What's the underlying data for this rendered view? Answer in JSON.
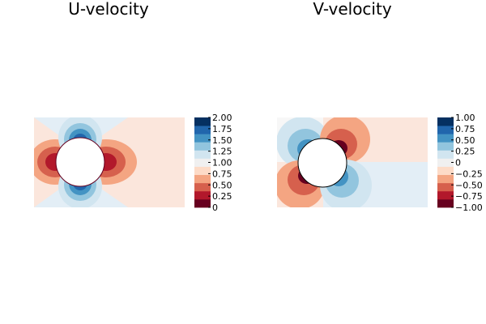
{
  "chart_data": [
    {
      "type": "heatmap",
      "title": "U-velocity",
      "colormap": "RdBu",
      "colorbar": {
        "ticks": [
          "0",
          "0.25",
          "0.50",
          "0.75",
          "1.00",
          "1.25",
          "1.50",
          "1.75",
          "2.00"
        ],
        "levels": [
          0,
          0.25,
          0.5,
          0.75,
          1.0,
          1.25,
          1.5,
          1.75,
          2.0
        ],
        "colors": [
          "#67001f",
          "#b2182b",
          "#d6604d",
          "#f4a582",
          "#fddbc7",
          "#f0f0f0",
          "#d1e5f0",
          "#92c5de",
          "#4393c3",
          "#2166ac",
          "#053061"
        ]
      },
      "obstacle": "circle",
      "legend": false,
      "grid": false
    },
    {
      "type": "heatmap",
      "title": "V-velocity",
      "colormap": "RdBu",
      "colorbar": {
        "ticks": [
          "−1.00",
          "−0.75",
          "−0.50",
          "−0.25",
          "0",
          "0.25",
          "0.50",
          "0.75",
          "1.00"
        ],
        "levels": [
          -1.0,
          -0.75,
          -0.5,
          -0.25,
          0,
          0.25,
          0.5,
          0.75,
          1.0
        ],
        "colors": [
          "#67001f",
          "#b2182b",
          "#d6604d",
          "#f4a582",
          "#fddbc7",
          "#f0f0f0",
          "#d1e5f0",
          "#92c5de",
          "#4393c3",
          "#2166ac",
          "#053061"
        ]
      },
      "obstacle": "circle",
      "legend": false,
      "grid": false
    }
  ]
}
